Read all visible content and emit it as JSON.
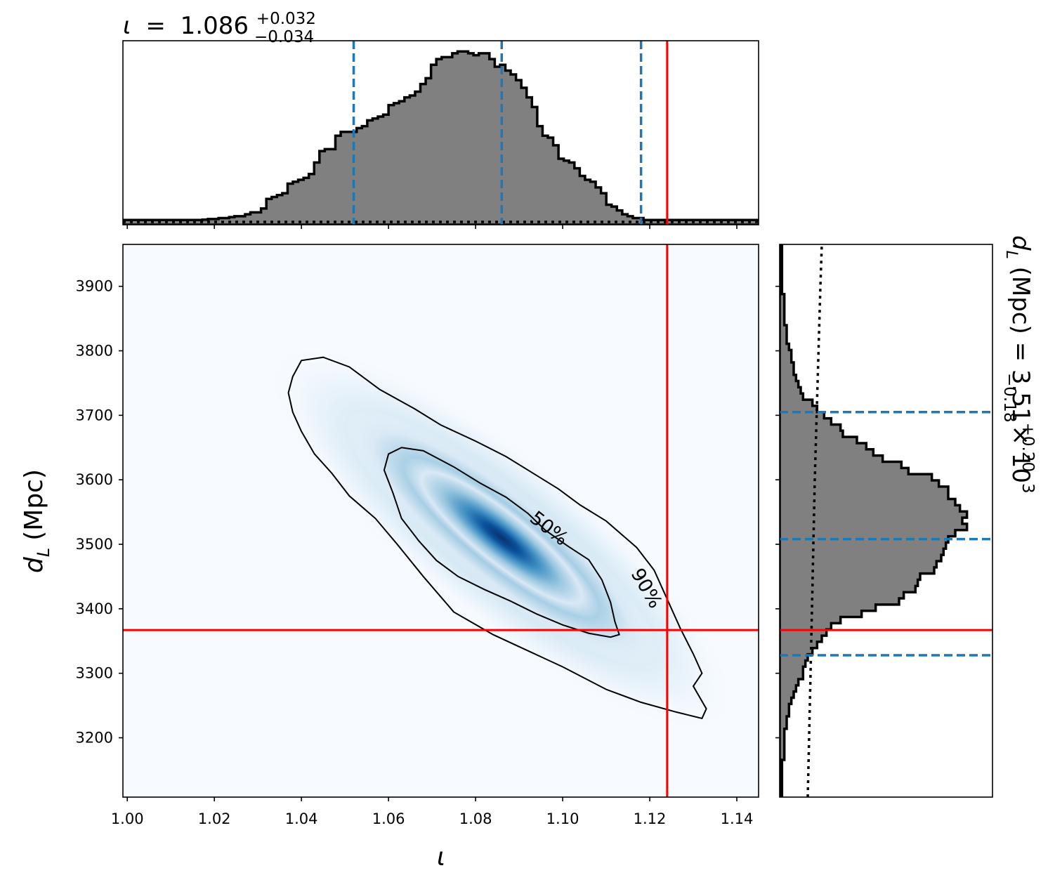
{
  "colors": {
    "hist_fill": "#808080",
    "hist_edge": "#000000",
    "quantile_line": "#1f77b4",
    "truth_line": "#ff0000",
    "contour": "#000000",
    "colormap": "Blues"
  },
  "chart_data": [
    {
      "type": "histogram",
      "panel": "top-marginal",
      "title": {
        "symbol": "ι",
        "equals": "=",
        "median": "1.086",
        "upper": "+0.032",
        "lower": "−0.034"
      },
      "x": {
        "lim": [
          0.999,
          1.145
        ],
        "ticks": [
          1.0,
          1.02,
          1.04,
          1.06,
          1.08,
          1.1,
          1.12,
          1.14
        ],
        "tick_labels_visible": false
      },
      "bins": {
        "edges": [
          0.999,
          1.1454
        ],
        "heights": [
          0.01,
          0.01,
          0.01,
          0.01,
          0.01,
          0.01,
          0.01,
          0.01,
          0.01,
          0.01,
          0.01,
          0.01,
          0.01,
          0.01,
          0.01,
          0.012,
          0.015,
          0.015,
          0.02,
          0.02,
          0.025,
          0.03,
          0.03,
          0.04,
          0.05,
          0.05,
          0.07,
          0.12,
          0.13,
          0.14,
          0.15,
          0.2,
          0.21,
          0.22,
          0.23,
          0.25,
          0.31,
          0.37,
          0.38,
          0.38,
          0.45,
          0.47,
          0.47,
          0.47,
          0.49,
          0.5,
          0.53,
          0.54,
          0.55,
          0.56,
          0.61,
          0.62,
          0.63,
          0.65,
          0.66,
          0.68,
          0.72,
          0.75,
          0.82,
          0.85,
          0.86,
          0.86,
          0.88,
          0.89,
          0.89,
          0.88,
          0.87,
          0.88,
          0.88,
          0.85,
          0.81,
          0.82,
          0.79,
          0.77,
          0.74,
          0.7,
          0.65,
          0.6,
          0.5,
          0.45,
          0.44,
          0.4,
          0.33,
          0.32,
          0.31,
          0.28,
          0.24,
          0.22,
          0.21,
          0.18,
          0.15,
          0.09,
          0.08,
          0.06,
          0.04,
          0.03,
          0.02,
          0.02,
          0.01,
          0.01,
          0.01,
          0.01,
          0.01,
          0.01,
          0.01,
          0.01,
          0.01,
          0.01,
          0.01,
          0.01,
          0.01,
          0.01,
          0.01,
          0.01,
          0.01,
          0.01,
          0.01,
          0.01,
          0.01,
          0.01
        ]
      },
      "quantiles": [
        1.052,
        1.086,
        1.118
      ],
      "truth": 1.124,
      "prior": "dotted-flat"
    },
    {
      "type": "heatmap",
      "panel": "joint",
      "x": {
        "label": "ι",
        "lim": [
          0.999,
          1.145
        ],
        "ticks": [
          1.0,
          1.02,
          1.04,
          1.06,
          1.08,
          1.1,
          1.12,
          1.14
        ],
        "tick_labels": [
          "1.00",
          "1.02",
          "1.04",
          "1.06",
          "1.08",
          "1.10",
          "1.12",
          "1.14"
        ]
      },
      "y": {
        "label_base": "d",
        "label_sub": "L",
        "label_unit": "(Mpc)",
        "lim": [
          3108,
          3965
        ],
        "ticks": [
          3200,
          3300,
          3400,
          3500,
          3600,
          3700,
          3800,
          3900
        ],
        "tick_labels": [
          "3200",
          "3300",
          "3400",
          "3500",
          "3600",
          "3700",
          "3800",
          "3900"
        ]
      },
      "density_center": [
        1.086,
        3510
      ],
      "contours": [
        {
          "label": "50%",
          "points": [
            [
              1.06,
              3640
            ],
            [
              1.063,
              3650
            ],
            [
              1.068,
              3645
            ],
            [
              1.075,
              3620
            ],
            [
              1.081,
              3595
            ],
            [
              1.087,
              3573
            ],
            [
              1.092,
              3548
            ],
            [
              1.096,
              3522
            ],
            [
              1.101,
              3498
            ],
            [
              1.106,
              3476
            ],
            [
              1.109,
              3445
            ],
            [
              1.111,
              3410
            ],
            [
              1.112,
              3380
            ],
            [
              1.113,
              3360
            ],
            [
              1.111,
              3356
            ],
            [
              1.106,
              3362
            ],
            [
              1.1,
              3375
            ],
            [
              1.094,
              3392
            ],
            [
              1.088,
              3412
            ],
            [
              1.082,
              3430
            ],
            [
              1.076,
              3450
            ],
            [
              1.071,
              3475
            ],
            [
              1.067,
              3505
            ],
            [
              1.063,
              3540
            ],
            [
              1.061,
              3580
            ],
            [
              1.059,
              3615
            ],
            [
              1.06,
              3640
            ]
          ]
        },
        {
          "label": "90%",
          "points": [
            [
              1.038,
              3760
            ],
            [
              1.04,
              3785
            ],
            [
              1.045,
              3790
            ],
            [
              1.051,
              3775
            ],
            [
              1.058,
              3740
            ],
            [
              1.066,
              3710
            ],
            [
              1.072,
              3685
            ],
            [
              1.08,
              3660
            ],
            [
              1.087,
              3636
            ],
            [
              1.093,
              3611
            ],
            [
              1.099,
              3586
            ],
            [
              1.104,
              3561
            ],
            [
              1.11,
              3536
            ],
            [
              1.117,
              3495
            ],
            [
              1.121,
              3460
            ],
            [
              1.124,
              3415
            ],
            [
              1.127,
              3370
            ],
            [
              1.13,
              3330
            ],
            [
              1.132,
              3300
            ],
            [
              1.131,
              3290
            ],
            [
              1.13,
              3280
            ],
            [
              1.133,
              3245
            ],
            [
              1.132,
              3230
            ],
            [
              1.126,
              3240
            ],
            [
              1.118,
              3255
            ],
            [
              1.11,
              3275
            ],
            [
              1.1,
              3310
            ],
            [
              1.092,
              3335
            ],
            [
              1.084,
              3360
            ],
            [
              1.075,
              3395
            ],
            [
              1.068,
              3450
            ],
            [
              1.062,
              3500
            ],
            [
              1.057,
              3540
            ],
            [
              1.051,
              3575
            ],
            [
              1.047,
              3610
            ],
            [
              1.043,
              3640
            ],
            [
              1.04,
              3675
            ],
            [
              1.038,
              3705
            ],
            [
              1.037,
              3735
            ],
            [
              1.038,
              3760
            ]
          ]
        }
      ],
      "truth": {
        "x": 1.124,
        "y": 3367
      }
    },
    {
      "type": "histogram",
      "panel": "right-marginal",
      "orientation": "horizontal",
      "label": {
        "symbol": "d",
        "sub": "L",
        "rest": " (Mpc) = 3.51",
        "upper": "+0.20",
        "lower": "−0.18",
        "times": "× 10",
        "exp": "3"
      },
      "y": {
        "lim": [
          3108,
          3965
        ],
        "ticks": [
          3200,
          3300,
          3400,
          3500,
          3600,
          3700,
          3800,
          3900
        ],
        "tick_labels_visible": false
      },
      "bins": {
        "edges": [
          3108,
          3965
        ],
        "heights": [
          0.01,
          0.01,
          0.01,
          0.01,
          0.01,
          0.01,
          0.02,
          0.02,
          0.02,
          0.02,
          0.02,
          0.03,
          0.03,
          0.04,
          0.04,
          0.05,
          0.06,
          0.07,
          0.08,
          0.1,
          0.1,
          0.11,
          0.12,
          0.14,
          0.16,
          0.18,
          0.2,
          0.22,
          0.26,
          0.35,
          0.41,
          0.51,
          0.53,
          0.58,
          0.59,
          0.6,
          0.66,
          0.67,
          0.69,
          0.7,
          0.71,
          0.72,
          0.75,
          0.8,
          0.78,
          0.8,
          0.77,
          0.75,
          0.72,
          0.72,
          0.68,
          0.65,
          0.55,
          0.52,
          0.44,
          0.4,
          0.37,
          0.33,
          0.27,
          0.26,
          0.22,
          0.19,
          0.16,
          0.14,
          0.1,
          0.09,
          0.08,
          0.07,
          0.06,
          0.06,
          0.05,
          0.05,
          0.04,
          0.03,
          0.03,
          0.03,
          0.02,
          0.02,
          0.02,
          0.02,
          0.02,
          0.01,
          0.01,
          0.01,
          0.01,
          0.01,
          0.01,
          0.01,
          0.01
        ]
      },
      "quantiles": [
        3328,
        3508,
        3705
      ],
      "truth": 3367,
      "prior": "dotted-rising"
    }
  ]
}
